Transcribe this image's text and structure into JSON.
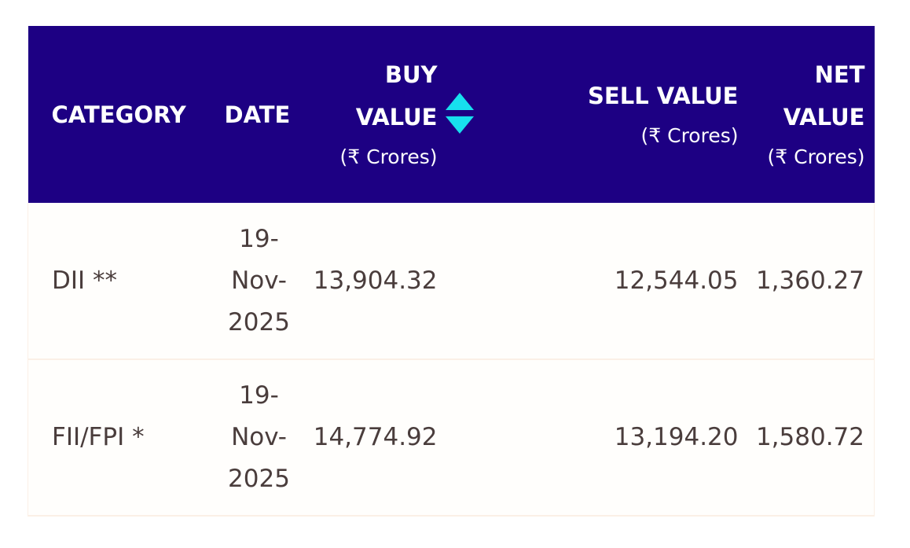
{
  "table": {
    "headers": {
      "category": "CATEGORY",
      "date": "DATE",
      "buy_value": "BUY VALUE",
      "buy_unit": "(₹ Crores)",
      "sell_value": "SELL VALUE",
      "sell_unit": "(₹ Crores)",
      "net_value": "NET VALUE",
      "net_unit": "(₹ Crores)"
    },
    "sort_icon": "sort-up-down-icon",
    "accent_color": "#17e0ee",
    "header_bg": "#1d0083",
    "rows": [
      {
        "category": "DII **",
        "date": "19-Nov-2025",
        "buy_value": "13,904.32",
        "sell_value": "12,544.05",
        "net_value": "1,360.27"
      },
      {
        "category": "FII/FPI *",
        "date": "19-Nov-2025",
        "buy_value": "14,774.92",
        "sell_value": "13,194.20",
        "net_value": "1,580.72"
      }
    ]
  }
}
